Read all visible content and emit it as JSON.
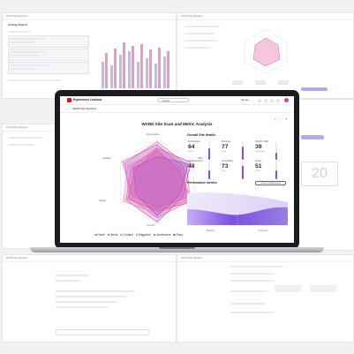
{
  "app": {
    "title": "Experience Lookout",
    "search_placeholder": "Search...",
    "user_menu": "People",
    "tab": "WAND Site Migration"
  },
  "scan": {
    "title": "WAND Site Scan and Metric Analysis"
  },
  "radar": {
    "axes": [
      "Performance",
      "SEO",
      "Accessibility",
      "Content",
      "Design",
      "Usability"
    ],
    "series": [
      {
        "name": "Home",
        "color": "#f06aa7"
      },
      {
        "name": "About",
        "color": "#c94fb6"
      },
      {
        "name": "Contact",
        "color": "#e889c7"
      },
      {
        "name": "Magazine",
        "color": "#b668d4"
      },
      {
        "name": "Adventures",
        "color": "#9a4fce"
      },
      {
        "name": "Shop",
        "color": "#df4fa0"
      }
    ],
    "legend_prefix": "•"
  },
  "health": {
    "title": "Overall Site Health",
    "metrics": [
      {
        "label": "Performance",
        "value": "64",
        "sub": "Score",
        "level": 0.64
      },
      {
        "label": "Bot Score",
        "value": "77",
        "sub": "Score",
        "level": 0.77
      },
      {
        "label": "Monthly Traffic",
        "value": "39",
        "sub": "Thousands",
        "level": 0.39
      },
      {
        "label": "Technical Score",
        "value": "48",
        "sub": "Score",
        "level": 0.48
      },
      {
        "label": "Accessibility",
        "value": "73",
        "sub": "Score",
        "level": 0.73
      },
      {
        "label": "Design",
        "value": "51",
        "sub": "Score",
        "level": 0.51
      }
    ]
  },
  "performance": {
    "title": "Performance metrics",
    "button": "Review with AI Assistant",
    "foot_left": "Baseline",
    "foot_right": "Projected"
  },
  "background": {
    "left_top_title": "WAND Site Migration",
    "left_top_sub": "Getting Started",
    "right_top_title": "WAND Site Migration",
    "left_mid_title": "WAND Site Migration",
    "left_bottom_title": "WAND Site Migration",
    "right_bottom_title": "WAND Site Migration"
  }
}
